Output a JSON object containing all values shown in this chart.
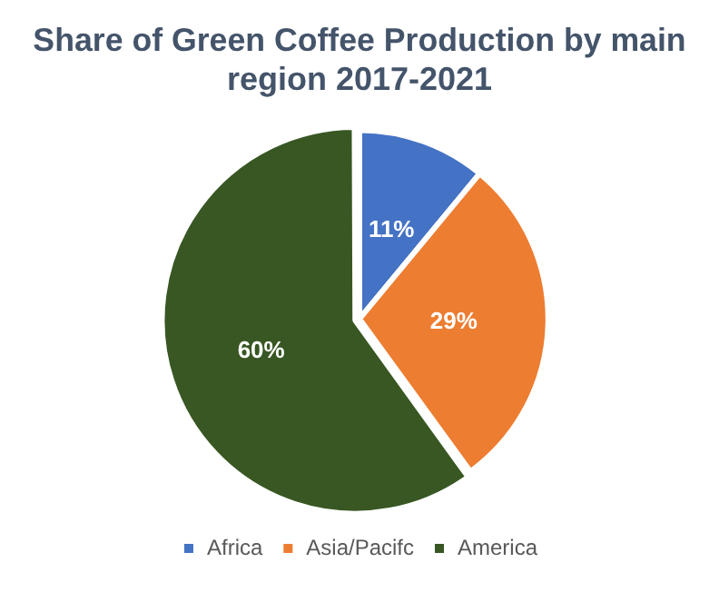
{
  "chart_data": {
    "type": "pie",
    "title": "Share of Green Coffee Production by main region 2017-2021",
    "categories": [
      "Africa",
      "Asia/Pacifc",
      "America"
    ],
    "values": [
      11,
      29,
      60
    ],
    "colors": [
      "#4472c4",
      "#ed7d31",
      "#385723"
    ],
    "value_labels": [
      "11%",
      "29%",
      "60%"
    ],
    "legend": "bottom"
  }
}
